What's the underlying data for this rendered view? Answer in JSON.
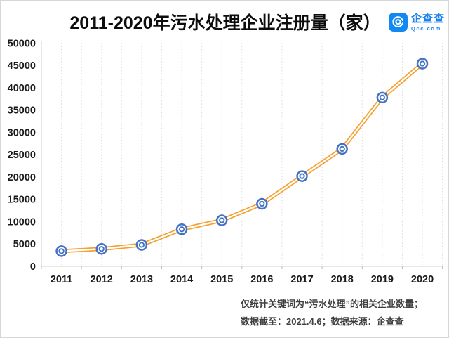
{
  "header": {
    "title": "2011-2020年污水处理企业注册量（家）",
    "logo": {
      "name": "企查查",
      "domain": "Qcc.com",
      "icon_color": "#1288f2",
      "text_color": "#1b82ee"
    }
  },
  "chart_data": {
    "type": "line",
    "title": "2011-2020年污水处理企业注册量（家）",
    "categories": [
      "2011",
      "2012",
      "2013",
      "2014",
      "2015",
      "2016",
      "2017",
      "2018",
      "2019",
      "2020"
    ],
    "series": [
      {
        "name": "污水处理企业注册量（家）",
        "values": [
          3400,
          3900,
          4800,
          8300,
          10300,
          14000,
          20200,
          26300,
          37800,
          45400
        ]
      }
    ],
    "xlabel": "",
    "ylabel": "",
    "ylim": [
      0,
      50000
    ],
    "ytick_step": 5000,
    "yticks": [
      0,
      5000,
      10000,
      15000,
      20000,
      25000,
      30000,
      35000,
      40000,
      45000,
      50000
    ],
    "grid": "vertical-dotted-only",
    "legend_position": "none",
    "line_color": "#f5a02f",
    "line_style": "double",
    "marker": "double-circle",
    "marker_color": "#4472c4",
    "axis_color": "#d9d9d9",
    "gridline_color": "#d9d9d9"
  },
  "footer": {
    "line1": "仅统计关键词为“污水处理”的相关企业数量；",
    "line2": "数据截至：2021.4.6；数据来源：企查查"
  }
}
